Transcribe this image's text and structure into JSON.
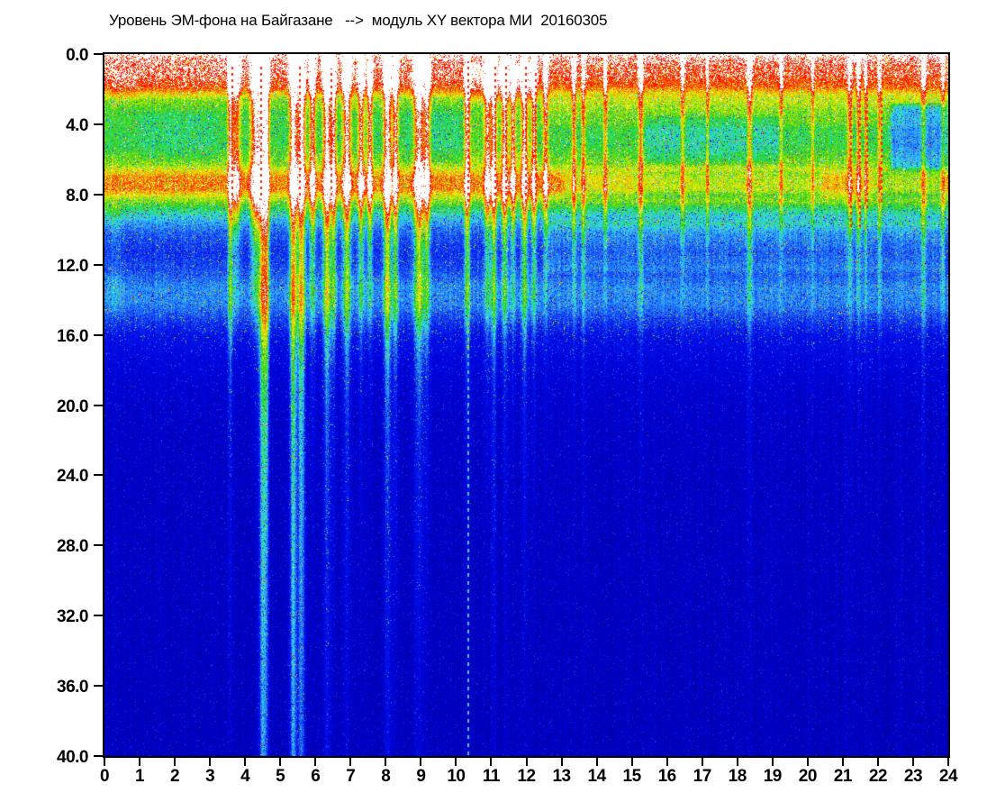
{
  "title": "Уровень ЭМ-фона на Байгазане   -->  модуль XY вектора МИ  20160305",
  "axes": {
    "x": {
      "min": 0,
      "max": 24,
      "ticks": [
        "0",
        "1",
        "2",
        "3",
        "4",
        "5",
        "6",
        "7",
        "8",
        "9",
        "10",
        "11",
        "12",
        "13",
        "14",
        "15",
        "16",
        "17",
        "18",
        "19",
        "20",
        "21",
        "22",
        "23",
        "24"
      ]
    },
    "y": {
      "min": 0,
      "max": 40,
      "inverted": true,
      "ticks": [
        "0.0",
        "4.0",
        "8.0",
        "12.0",
        "16.0",
        "20.0",
        "24.0",
        "28.0",
        "32.0",
        "36.0",
        "40.0"
      ]
    }
  },
  "chart_data": {
    "type": "heatmap",
    "title": "Уровень ЭМ-фона на Байгазане   -->  модуль XY вектора МИ  20160305",
    "xlabel": "",
    "ylabel": "",
    "x_range": [
      0,
      24
    ],
    "y_range": [
      0,
      40
    ],
    "grid": false,
    "legend": "none",
    "seed": 20160305,
    "description": "24-h EM background spectrogram: white/red saturated band 0-2, green band 2-6.5, red band 6.6-8.3, cyan band 12.5-15, deep blue below 16; broadband interference pulses (white gaps with red dotted cores) clustered 3.5-9.2 h and 10.3-12.6 h whose cyan streaks descend to 40; red band weakens to yellow-green after 13 h; blue patch 22.3-24 h at 3-7.",
    "palette": [
      [
        0.0,
        "#000078"
      ],
      [
        0.13,
        "#0000C2"
      ],
      [
        0.21,
        "#0006DE"
      ],
      [
        0.32,
        "#0918EE"
      ],
      [
        0.41,
        "#1E62FA"
      ],
      [
        0.48,
        "#2FAAFF"
      ],
      [
        0.54,
        "#36E2E2"
      ],
      [
        0.595,
        "#2ADC50"
      ],
      [
        0.64,
        "#1ECC1E"
      ],
      [
        0.71,
        "#9BE312"
      ],
      [
        0.78,
        "#F2F200"
      ],
      [
        0.86,
        "#FF9000"
      ],
      [
        0.93,
        "#FF2200"
      ],
      [
        0.995,
        "#FF0000"
      ],
      [
        1.0,
        "#FFFFFF"
      ],
      [
        1.3,
        "#FFFFFF"
      ]
    ],
    "base_profile": [
      [
        0.0,
        1.07
      ],
      [
        0.35,
        1.01
      ],
      [
        1.2,
        0.99
      ],
      [
        1.9,
        0.92
      ],
      [
        2.6,
        0.7
      ],
      [
        3.5,
        0.63
      ],
      [
        5.2,
        0.62
      ],
      [
        6.3,
        0.7
      ],
      [
        7.0,
        0.86
      ],
      [
        7.7,
        0.87
      ],
      [
        8.2,
        0.74
      ],
      [
        8.8,
        0.6
      ],
      [
        9.4,
        0.5
      ],
      [
        10.2,
        0.4
      ],
      [
        11.3,
        0.345
      ],
      [
        12.3,
        0.38
      ],
      [
        13.3,
        0.45
      ],
      [
        14.3,
        0.44
      ],
      [
        15.2,
        0.36
      ],
      [
        16.2,
        0.27
      ],
      [
        17.5,
        0.21
      ],
      [
        19.0,
        0.175
      ],
      [
        21.0,
        0.155
      ],
      [
        24.0,
        0.145
      ],
      [
        28.0,
        0.14
      ],
      [
        33.0,
        0.135
      ],
      [
        40.0,
        0.13
      ]
    ],
    "patches": [
      {
        "t0": 10.2,
        "t1": 12.3,
        "f0": 0.4,
        "f1": 3.0,
        "m": 1.1
      },
      {
        "t0": 10.2,
        "t1": 12.3,
        "f0": 3.0,
        "f1": 6.5,
        "m": 1.06
      },
      {
        "t0": 12.3,
        "t1": 24.0,
        "f0": 0.4,
        "f1": 2.5,
        "m": 0.97
      },
      {
        "t0": 12.3,
        "t1": 24.0,
        "f0": 2.3,
        "f1": 4.3,
        "m": 1.08
      },
      {
        "t0": 13.0,
        "t1": 24.0,
        "f0": 6.5,
        "f1": 8.4,
        "m": 0.9
      },
      {
        "t0": 15.0,
        "t1": 20.5,
        "f0": 6.5,
        "f1": 8.4,
        "m": 0.95
      },
      {
        "t0": 20.3,
        "t1": 21.6,
        "f0": 6.5,
        "f1": 8.4,
        "m": 1.06
      },
      {
        "t0": 21.8,
        "t1": 24.0,
        "f0": 6.5,
        "f1": 8.4,
        "m": 0.93
      },
      {
        "t0": 15.3,
        "t1": 19.4,
        "f0": 3.4,
        "f1": 6.4,
        "m": 0.9
      },
      {
        "t0": 22.3,
        "t1": 24.0,
        "f0": 2.7,
        "f1": 6.8,
        "m": 0.73
      },
      {
        "t0": 12.5,
        "t1": 24.0,
        "f0": 9.3,
        "f1": 12.6,
        "m": 1.17
      },
      {
        "t0": 0.0,
        "t1": 0.6,
        "f0": 8.4,
        "f1": 15.0,
        "m": 1.1
      },
      {
        "t0": 0.9,
        "t1": 3.3,
        "f0": 3.2,
        "f1": 6.2,
        "m": 0.95
      },
      {
        "t0": 8.5,
        "t1": 10.2,
        "f0": 3.0,
        "f1": 6.3,
        "m": 0.95
      },
      {
        "t0": 0.15,
        "t1": 1.0,
        "f0": 0.8,
        "f1": 2.8,
        "m": 1.04
      }
    ],
    "events": [
      {
        "t": 3.58,
        "w": 0.05,
        "a": 0.38,
        "d": 14
      },
      {
        "t": 3.75,
        "w": 0.08,
        "a": 0.3,
        "d": 4
      },
      {
        "t": 4.3,
        "w": 0.1,
        "a": 0.42,
        "d": 5
      },
      {
        "t": 4.5,
        "w": 0.07,
        "a": 0.48,
        "d": 90
      },
      {
        "t": 4.62,
        "w": 0.05,
        "a": 0.45,
        "d": 30
      },
      {
        "t": 5.37,
        "w": 0.07,
        "a": 0.5,
        "d": 90
      },
      {
        "t": 5.6,
        "w": 0.08,
        "a": 0.46,
        "d": 60
      },
      {
        "t": 5.92,
        "w": 0.06,
        "a": 0.38,
        "d": 8
      },
      {
        "t": 6.33,
        "w": 0.08,
        "a": 0.45,
        "d": 22
      },
      {
        "t": 6.52,
        "w": 0.05,
        "a": 0.4,
        "d": 10
      },
      {
        "t": 6.9,
        "w": 0.08,
        "a": 0.42,
        "d": 16
      },
      {
        "t": 7.3,
        "w": 0.06,
        "a": 0.36,
        "d": 8
      },
      {
        "t": 7.55,
        "w": 0.05,
        "a": 0.38,
        "d": 6
      },
      {
        "t": 8.05,
        "w": 0.08,
        "a": 0.45,
        "d": 22
      },
      {
        "t": 8.28,
        "w": 0.05,
        "a": 0.4,
        "d": 12
      },
      {
        "t": 8.95,
        "w": 0.1,
        "a": 0.45,
        "d": 16
      },
      {
        "t": 9.18,
        "w": 0.06,
        "a": 0.38,
        "d": 10
      },
      {
        "t": 10.32,
        "w": 0.05,
        "a": 0.42,
        "d": 10
      },
      {
        "t": 10.9,
        "w": 0.06,
        "a": 0.36,
        "d": 8
      },
      {
        "t": 11.08,
        "w": 0.05,
        "a": 0.4,
        "d": 14
      },
      {
        "t": 11.38,
        "w": 0.06,
        "a": 0.38,
        "d": 10
      },
      {
        "t": 11.62,
        "w": 0.05,
        "a": 0.33,
        "d": 6
      },
      {
        "t": 11.95,
        "w": 0.06,
        "a": 0.4,
        "d": 12
      },
      {
        "t": 12.22,
        "w": 0.05,
        "a": 0.36,
        "d": 8
      },
      {
        "t": 12.55,
        "w": 0.05,
        "a": 0.3,
        "d": 5
      },
      {
        "t": 13.35,
        "w": 0.04,
        "a": 0.26,
        "d": 5
      },
      {
        "t": 13.62,
        "w": 0.04,
        "a": 0.22,
        "d": 8
      },
      {
        "t": 14.25,
        "w": 0.04,
        "a": 0.22,
        "d": 4
      },
      {
        "t": 15.25,
        "w": 0.05,
        "a": 0.24,
        "d": 8
      },
      {
        "t": 16.45,
        "w": 0.04,
        "a": 0.2,
        "d": 4
      },
      {
        "t": 17.15,
        "w": 0.03,
        "a": 0.18,
        "d": 4
      },
      {
        "t": 18.35,
        "w": 0.05,
        "a": 0.24,
        "d": 9
      },
      {
        "t": 19.25,
        "w": 0.04,
        "a": 0.18,
        "d": 4
      },
      {
        "t": 20.15,
        "w": 0.03,
        "a": 0.16,
        "d": 4
      },
      {
        "t": 21.2,
        "w": 0.04,
        "a": 0.24,
        "d": 6
      },
      {
        "t": 21.45,
        "w": 0.04,
        "a": 0.24,
        "d": 6
      },
      {
        "t": 21.65,
        "w": 0.03,
        "a": 0.22,
        "d": 5
      },
      {
        "t": 22.05,
        "w": 0.04,
        "a": 0.2,
        "d": 6
      },
      {
        "t": 23.3,
        "w": 0.05,
        "a": 0.22,
        "d": 12
      },
      {
        "t": 23.85,
        "w": 0.04,
        "a": 0.18,
        "d": 8
      }
    ],
    "overlay_lines": [
      {
        "t": 10.33,
        "f0": 8.5,
        "f1": 40.0,
        "on": 4,
        "off": 5,
        "w": 2,
        "color": "#7FE32A",
        "color2": "#4CC8E8",
        "switch_f": 17
      },
      {
        "t": 10.33,
        "f0": 0.4,
        "f1": 8.5,
        "on": 3,
        "off": 4,
        "w": 2,
        "color": "#EE2A10"
      },
      {
        "t": 3.6,
        "f0": 0.5,
        "f1": 8.3,
        "on": 3,
        "off": 4,
        "w": 2,
        "color": "#EE2A10"
      },
      {
        "t": 4.44,
        "f0": 0.5,
        "f1": 8.3,
        "on": 3,
        "off": 4,
        "w": 2,
        "color": "#EE2A10"
      },
      {
        "t": 5.52,
        "f0": 0.5,
        "f1": 8.3,
        "on": 3,
        "off": 4,
        "w": 2,
        "color": "#EE2A10"
      },
      {
        "t": 6.42,
        "f0": 0.8,
        "f1": 8.3,
        "on": 3,
        "off": 4,
        "w": 2,
        "color": "#EE2A10"
      },
      {
        "t": 11.1,
        "f0": 0.5,
        "f1": 8.6,
        "on": 3,
        "off": 4,
        "w": 2,
        "color": "#EE2A10"
      },
      {
        "t": 11.4,
        "f0": 0.5,
        "f1": 8.6,
        "on": 3,
        "off": 4,
        "w": 2,
        "color": "#EE2A10"
      },
      {
        "t": 11.97,
        "f0": 0.5,
        "f1": 8.6,
        "on": 3,
        "off": 4,
        "w": 2,
        "color": "#EE2A10"
      },
      {
        "t": 12.25,
        "f0": 1.0,
        "f1": 8.6,
        "on": 3,
        "off": 4,
        "w": 2,
        "color": "#EE2A10"
      },
      {
        "t": 21.22,
        "f0": 1.2,
        "f1": 10.0,
        "on": 3,
        "off": 4,
        "w": 2,
        "color": "#EE2A10"
      },
      {
        "t": 21.47,
        "f0": 1.2,
        "f1": 10.0,
        "on": 3,
        "off": 4,
        "w": 2,
        "color": "#EE2A10"
      },
      {
        "t": 21.67,
        "f0": 1.8,
        "f1": 9.0,
        "on": 3,
        "off": 4,
        "w": 2,
        "color": "#EE2A10"
      },
      {
        "t": 22.07,
        "f0": 2.0,
        "f1": 8.6,
        "on": 3,
        "off": 4,
        "w": 2,
        "color": "#EE2A10"
      }
    ],
    "noise": {
      "pixel": 0.14,
      "column": 0.045,
      "spike_prob": 0.05,
      "spike": 1.0
    }
  },
  "colors": {
    "background": "#FFFFFF",
    "frame": "#000000",
    "text": "#000000",
    "deep_blue": "#0000C4",
    "cyan_band": "#2FAAFF",
    "green_band": "#1ECC1E",
    "red_band": "#FF2200",
    "saturation_white": "#FFFFFF"
  }
}
